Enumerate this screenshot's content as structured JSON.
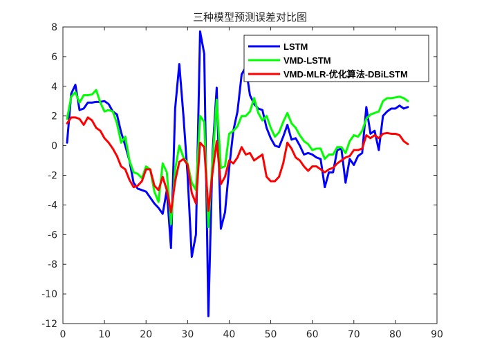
{
  "chart_data": {
    "type": "line",
    "title": "三种模型预测误差对比图",
    "xlabel": "",
    "ylabel": "",
    "xlim": [
      0,
      90
    ],
    "ylim": [
      -12,
      8
    ],
    "xticks": [
      0,
      10,
      20,
      30,
      40,
      50,
      60,
      70,
      80,
      90
    ],
    "yticks": [
      -12,
      -10,
      -8,
      -6,
      -4,
      -2,
      0,
      2,
      4,
      6,
      8
    ],
    "grid": false,
    "legend_position": "top-right",
    "x": [
      1,
      2,
      3,
      4,
      5,
      6,
      7,
      8,
      9,
      10,
      11,
      12,
      13,
      14,
      15,
      16,
      17,
      18,
      19,
      20,
      21,
      22,
      23,
      24,
      25,
      26,
      27,
      28,
      29,
      30,
      31,
      32,
      33,
      34,
      35,
      36,
      37,
      38,
      39,
      40,
      41,
      42,
      43,
      44,
      45,
      46,
      47,
      48,
      49,
      50,
      51,
      52,
      53,
      54,
      55,
      56,
      57,
      58,
      59,
      60,
      61,
      62,
      63,
      64,
      65,
      66,
      67,
      68,
      69,
      70,
      71,
      72,
      73,
      74,
      75,
      76,
      77,
      78,
      79,
      80,
      81,
      82,
      83
    ],
    "series": [
      {
        "name": "LSTM",
        "color": "#0000ff",
        "values": [
          0.2,
          3.5,
          4.1,
          2.4,
          2.5,
          2.9,
          2.9,
          2.95,
          2.95,
          3.0,
          2.8,
          2.3,
          2.1,
          0.9,
          0.0,
          -1.0,
          -2.5,
          -2.9,
          -3.0,
          -3.1,
          -3.5,
          -3.9,
          -4.2,
          -4.6,
          -3.0,
          -6.9,
          2.5,
          5.5,
          2.0,
          -2.0,
          -7.5,
          -6.0,
          7.7,
          6.2,
          -11.5,
          -0.5,
          3.9,
          -5.6,
          -4.5,
          -1.5,
          1.0,
          2.3,
          4.8,
          5.3,
          3.4,
          2.8,
          2.5,
          2.4,
          1.2,
          0.5,
          0.0,
          -0.1,
          0.6,
          1.4,
          0.4,
          0.5,
          0.0,
          -0.6,
          -0.5,
          -0.6,
          -0.8,
          -0.9,
          -2.8,
          -1.8,
          -1.8,
          -0.3,
          -0.2,
          -2.5,
          -0.9,
          -1.3,
          -0.7,
          -0.5,
          2.6,
          0.8,
          1.0,
          -0.3,
          2.0,
          2.3,
          2.5,
          2.5,
          2.7,
          2.5,
          2.6
        ]
      },
      {
        "name": "VMD-LSTM",
        "color": "#00ff00",
        "values": [
          1.8,
          3.3,
          3.6,
          2.9,
          3.4,
          3.4,
          3.45,
          3.75,
          2.9,
          2.3,
          2.4,
          2.3,
          1.5,
          0.2,
          0.6,
          -1.0,
          -1.8,
          -1.9,
          -2.2,
          -1.4,
          -1.6,
          -3.1,
          -3.8,
          -1.2,
          -1.8,
          -5.3,
          -1.6,
          0.0,
          -0.8,
          -1.2,
          -2.5,
          -3.0,
          2.0,
          1.6,
          -5.5,
          -1.0,
          3.1,
          -1.5,
          -1.4,
          0.8,
          1.0,
          1.3,
          2.0,
          2.0,
          2.3,
          3.2,
          2.2,
          1.7,
          2.0,
          1.2,
          0.6,
          0.9,
          1.6,
          2.2,
          1.5,
          1.2,
          0.7,
          0.3,
          0.1,
          -0.3,
          -0.2,
          -0.2,
          -0.9,
          -0.6,
          -0.6,
          -0.1,
          -0.1,
          -0.5,
          0.3,
          0.7,
          0.6,
          1.0,
          1.8,
          2.1,
          2.2,
          2.3,
          3.0,
          3.2,
          3.2,
          3.25,
          3.3,
          3.2,
          3.0
        ]
      },
      {
        "name": "VMD-MLR-优化算法-DBiLSTM",
        "color": "#ff0000",
        "values": [
          1.5,
          1.9,
          1.9,
          1.8,
          1.4,
          1.9,
          1.7,
          1.2,
          1.0,
          0.5,
          0.2,
          -0.2,
          -0.7,
          -1.4,
          -1.6,
          -2.3,
          -2.8,
          -2.7,
          -2.4,
          -1.6,
          -1.6,
          -2.7,
          -3.0,
          -2.1,
          -3.0,
          -4.5,
          -2.4,
          -1.1,
          -0.9,
          -1.3,
          -3.2,
          -3.9,
          0.2,
          -0.1,
          -4.4,
          -1.8,
          0.3,
          -2.6,
          -2.1,
          -1.0,
          -1.2,
          -0.8,
          -0.1,
          -0.6,
          -0.5,
          -1.0,
          -0.8,
          -0.6,
          -2.1,
          -2.4,
          -2.4,
          -2.1,
          -1.2,
          0.2,
          -0.2,
          -0.8,
          -1.0,
          -1.4,
          -1.7,
          -1.4,
          -1.4,
          -1.6,
          -1.8,
          -1.6,
          -1.5,
          -1.2,
          -1.0,
          -0.8,
          -0.7,
          -0.3,
          -0.3,
          -0.2,
          0.7,
          0.5,
          0.7,
          0.5,
          0.8,
          0.85,
          0.8,
          0.8,
          0.7,
          0.3,
          0.1
        ]
      }
    ]
  }
}
